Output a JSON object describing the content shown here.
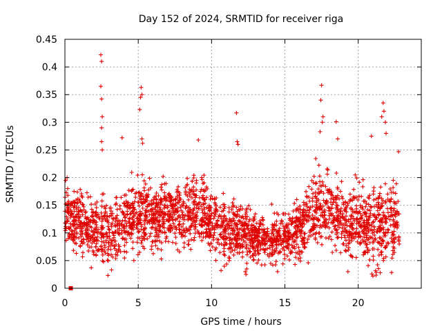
{
  "chart_data": {
    "type": "scatter",
    "title": "Day 152 of 2024, SRMTID for receiver riga",
    "xlabel": "GPS time / hours",
    "ylabel": "SRMTID / TECUs",
    "xlim": [
      0,
      24.3
    ],
    "ylim": [
      0,
      0.45
    ],
    "x_ticks": [
      0,
      5,
      10,
      15,
      20
    ],
    "x_tick_labels": [
      "0",
      "5",
      "10",
      "15",
      "20"
    ],
    "y_ticks": [
      0,
      0.05,
      0.1,
      0.15,
      0.2,
      0.25,
      0.3,
      0.35,
      0.4,
      0.45
    ],
    "y_tick_labels": [
      "0",
      "0.05",
      "0.1",
      "0.15",
      "0.2",
      "0.25",
      "0.3",
      "0.35",
      "0.4",
      "0.45"
    ],
    "grid": true,
    "marker": "+",
    "color": "#e00000",
    "series": [
      {
        "name": "SRMTID",
        "profile": {
          "hours": [
            0,
            1,
            2,
            3,
            4,
            5,
            6,
            7,
            8,
            9,
            10,
            11,
            12,
            13,
            14,
            15,
            16,
            17,
            18,
            19,
            20,
            21,
            22,
            22.8
          ],
          "median": [
            0.13,
            0.12,
            0.11,
            0.095,
            0.12,
            0.13,
            0.125,
            0.14,
            0.13,
            0.14,
            0.12,
            0.105,
            0.1,
            0.09,
            0.09,
            0.09,
            0.1,
            0.14,
            0.145,
            0.12,
            0.12,
            0.11,
            0.115,
            0.12
          ],
          "spread": [
            0.035,
            0.035,
            0.04,
            0.04,
            0.04,
            0.045,
            0.04,
            0.04,
            0.04,
            0.045,
            0.035,
            0.035,
            0.035,
            0.03,
            0.03,
            0.03,
            0.035,
            0.045,
            0.045,
            0.045,
            0.045,
            0.05,
            0.05,
            0.045
          ]
        },
        "sample_count": 2600,
        "notable_points": [
          {
            "x": 2.45,
            "y": 0.422
          },
          {
            "x": 2.5,
            "y": 0.41
          },
          {
            "x": 2.45,
            "y": 0.365
          },
          {
            "x": 2.5,
            "y": 0.342
          },
          {
            "x": 2.55,
            "y": 0.31
          },
          {
            "x": 2.5,
            "y": 0.29
          },
          {
            "x": 2.5,
            "y": 0.265
          },
          {
            "x": 2.55,
            "y": 0.25
          },
          {
            "x": 5.2,
            "y": 0.363
          },
          {
            "x": 5.25,
            "y": 0.35
          },
          {
            "x": 5.15,
            "y": 0.345
          },
          {
            "x": 5.1,
            "y": 0.323
          },
          {
            "x": 5.25,
            "y": 0.27
          },
          {
            "x": 5.3,
            "y": 0.262
          },
          {
            "x": 3.9,
            "y": 0.272
          },
          {
            "x": 9.1,
            "y": 0.268
          },
          {
            "x": 11.7,
            "y": 0.317
          },
          {
            "x": 11.75,
            "y": 0.265
          },
          {
            "x": 11.8,
            "y": 0.26
          },
          {
            "x": 17.5,
            "y": 0.367
          },
          {
            "x": 17.45,
            "y": 0.34
          },
          {
            "x": 17.6,
            "y": 0.31
          },
          {
            "x": 17.55,
            "y": 0.3
          },
          {
            "x": 17.4,
            "y": 0.283
          },
          {
            "x": 18.5,
            "y": 0.301
          },
          {
            "x": 18.6,
            "y": 0.27
          },
          {
            "x": 21.7,
            "y": 0.335
          },
          {
            "x": 21.75,
            "y": 0.32
          },
          {
            "x": 21.6,
            "y": 0.31
          },
          {
            "x": 21.85,
            "y": 0.3
          },
          {
            "x": 21.9,
            "y": 0.28
          },
          {
            "x": 22.75,
            "y": 0.247
          },
          {
            "x": 20.9,
            "y": 0.275
          },
          {
            "x": 12.3,
            "y": 0.03
          },
          {
            "x": 12.35,
            "y": 0.025
          },
          {
            "x": 12.4,
            "y": 0.035
          },
          {
            "x": 1.8,
            "y": 0.037
          },
          {
            "x": 10.65,
            "y": 0.032
          },
          {
            "x": 14.5,
            "y": 0.03
          },
          {
            "x": 19.3,
            "y": 0.03
          },
          {
            "x": 21.0,
            "y": 0.022
          },
          {
            "x": 21.5,
            "y": 0.028
          },
          {
            "x": 0.05,
            "y": 0.195
          },
          {
            "x": 0.15,
            "y": 0.2
          }
        ],
        "outlier_square": {
          "x": 0.4,
          "y": 0.0
        }
      }
    ]
  }
}
